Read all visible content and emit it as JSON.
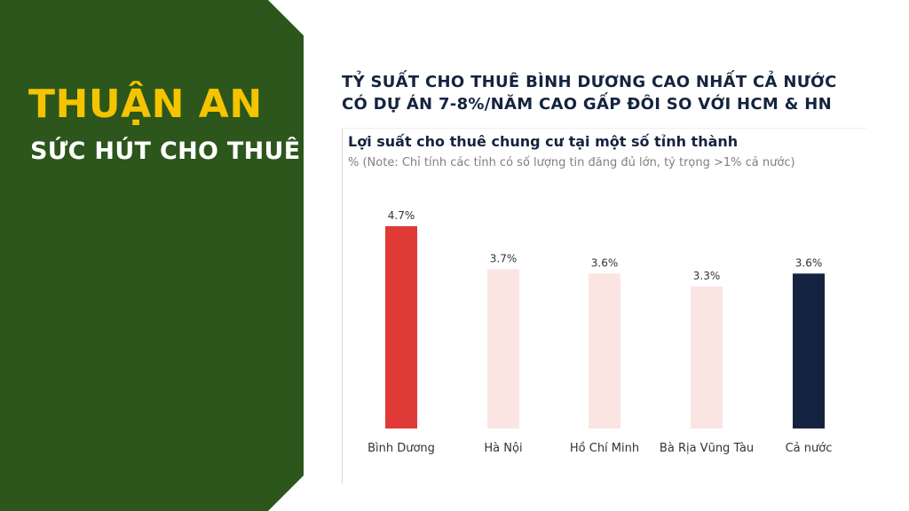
{
  "hero": {
    "title": "THUẬN AN",
    "subtitle": "SỨC HÚT CHO THUÊ"
  },
  "headline": {
    "line1": "TỶ SUẤT CHO THUÊ BÌNH DƯƠNG CAO NHẤT CẢ NƯỚC",
    "line2": "CÓ DỰ ÁN 7-8%/NĂM CAO GẤP ĐÔI SO VỚI HCM & HN"
  },
  "colors": {
    "panel_green": "#2c561c",
    "hero_yellow": "#f4c400",
    "headline_navy": "#14243f",
    "bar_highlight": "#e03a36",
    "bar_light": "#fbe5e3",
    "bar_dark": "#14233f",
    "subtitle_gray": "#808080",
    "label_text": "#333333"
  },
  "chart_data": {
    "type": "bar",
    "title": "Lợi suất cho thuê chung cư tại một số tỉnh thành",
    "subtitle": "% (Note: Chỉ tính các tỉnh có số lượng tin đăng đủ lớn, tỷ trọng >1% cả nước)",
    "categories": [
      "Bình Dương",
      "Hà Nội",
      "Hồ Chí Minh",
      "Bà Rịa Vũng Tàu",
      "Cả nước"
    ],
    "values": [
      4.7,
      3.7,
      3.6,
      3.3,
      3.6
    ],
    "value_labels": [
      "4.7%",
      "3.7%",
      "3.6%",
      "3.3%",
      "3.6%"
    ],
    "bar_colors": [
      "#e03a36",
      "#fbe5e3",
      "#fbe5e3",
      "#fbe5e3",
      "#14233f"
    ],
    "ylim": [
      0,
      4.7
    ],
    "grid": false,
    "legend": "none"
  }
}
